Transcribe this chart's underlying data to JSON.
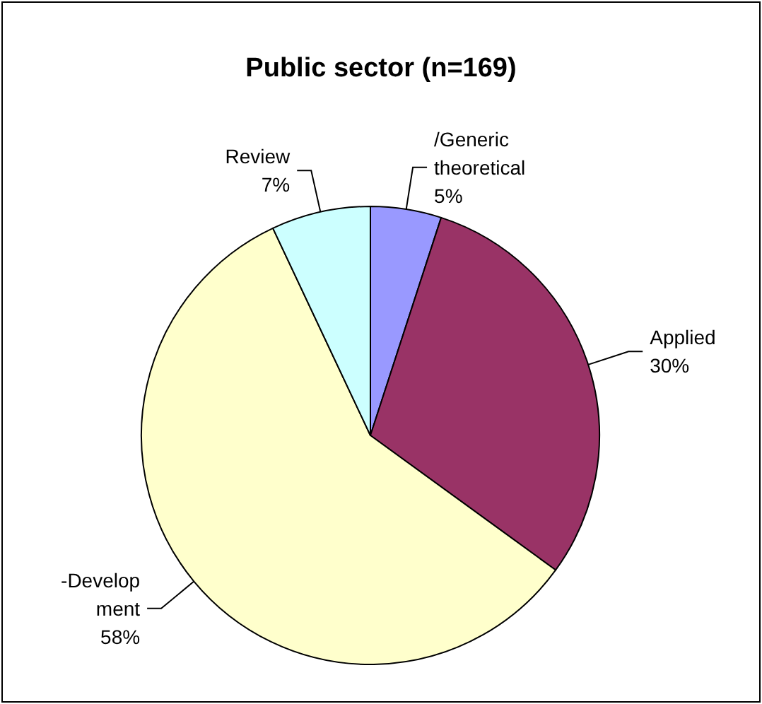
{
  "chart_data": {
    "type": "pie",
    "title": "Public sector (n=169)",
    "categories": [
      "/Generic\ntheoretical",
      "Applied",
      "-Develop\nment",
      "Review"
    ],
    "values": [
      5,
      30,
      58,
      7
    ],
    "value_labels": [
      "5%",
      "30%",
      "58%",
      "7%"
    ],
    "colors": [
      "#9999ff",
      "#993366",
      "#ffffcc",
      "#ccffff"
    ],
    "legend": false
  }
}
